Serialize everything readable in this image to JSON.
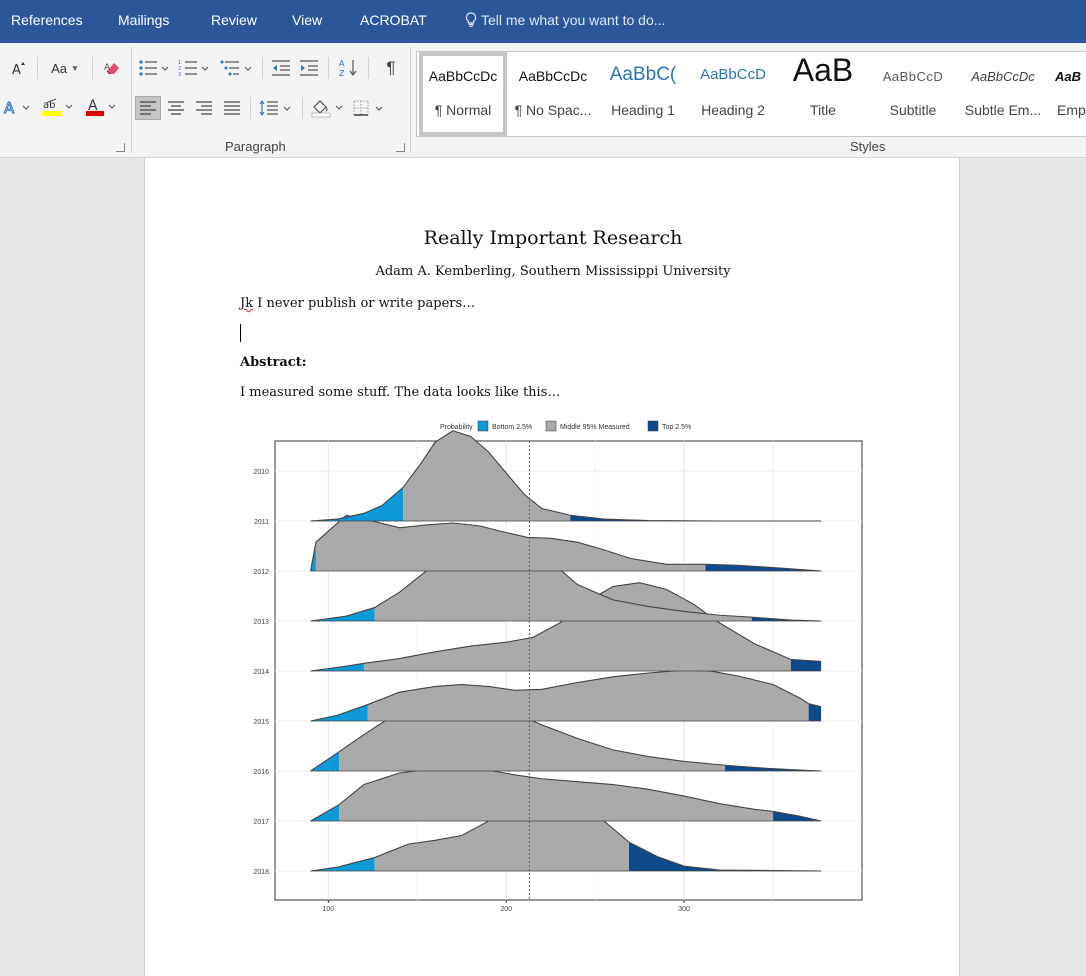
{
  "menu": {
    "tabs": [
      "References",
      "Mailings",
      "Review",
      "View",
      "ACROBAT"
    ],
    "tell_me": "Tell me what you want to do..."
  },
  "ribbon": {
    "font_group": {
      "size_label": "A",
      "case_label": "Aa"
    },
    "paragraph_label": "Paragraph",
    "styles_label": "Styles",
    "styles": [
      {
        "sample": "AaBbCcDc",
        "name": "¶ Normal"
      },
      {
        "sample": "AaBbCcDc",
        "name": "¶ No Spac..."
      },
      {
        "sample": "AaBbC(",
        "name": "Heading 1"
      },
      {
        "sample": "AaBbCcD",
        "name": "Heading 2"
      },
      {
        "sample": "AaB",
        "name": "Title"
      },
      {
        "sample": "AaBbCcD",
        "name": "Subtitle"
      },
      {
        "sample": "AaBbCcDc",
        "name": "Subtle Em..."
      },
      {
        "sample": "AaB",
        "name": "Emp"
      }
    ],
    "colors": {
      "highlight": "#ffff00",
      "font_color": "#e00000",
      "accent": "#2b579a"
    }
  },
  "document": {
    "title": "Really Important Research",
    "author": "Adam A. Kemberling, Southern Mississippi University",
    "line1_first": "Jk",
    "line1_rest": " I never publish or write papers…",
    "abstract_heading": "Abstract:",
    "abstract_text": "I measured some stuff. The data looks like this…"
  },
  "chart_data": {
    "type": "area",
    "subtype": "ridgeline",
    "legend": {
      "title": "Probability",
      "position": "top",
      "entries": [
        {
          "name": "Bottom 2.5%",
          "color": "#0d9ad8"
        },
        {
          "name": "Middle 95% Measured",
          "color": "#aaaaaa"
        },
        {
          "name": "Top 2.5%",
          "color": "#0c4a8c"
        }
      ]
    },
    "x_ticks": [
      100,
      200,
      300
    ],
    "xlim": [
      70,
      400
    ],
    "y_categories": [
      "2010",
      "2011",
      "2012",
      "2013",
      "2014",
      "2015",
      "2016",
      "2017",
      "2018"
    ],
    "reference_line_x": 213,
    "reference_line_color": "#c0392b",
    "grid": true,
    "series": [
      {
        "name": "2011",
        "x_range": [
          90,
          377
        ],
        "lower_2_5": 142,
        "upper_2_5": 236,
        "density": [
          [
            90,
            0.0
          ],
          [
            105,
            0.02
          ],
          [
            120,
            0.08
          ],
          [
            130,
            0.16
          ],
          [
            142,
            0.35
          ],
          [
            152,
            0.6
          ],
          [
            160,
            0.82
          ],
          [
            170,
            0.94
          ],
          [
            180,
            0.88
          ],
          [
            190,
            0.72
          ],
          [
            200,
            0.5
          ],
          [
            210,
            0.28
          ],
          [
            220,
            0.13
          ],
          [
            236,
            0.06
          ],
          [
            255,
            0.02
          ],
          [
            280,
            0.005
          ],
          [
            320,
            0.0
          ],
          [
            377,
            0.0
          ]
        ]
      },
      {
        "name": "2012",
        "x_range": [
          90,
          377
        ],
        "lower_2_5": 93,
        "upper_2_5": 312,
        "density": [
          [
            90,
            0.0
          ],
          [
            93,
            0.3
          ],
          [
            110,
            0.58
          ],
          [
            125,
            0.52
          ],
          [
            140,
            0.45
          ],
          [
            155,
            0.48
          ],
          [
            170,
            0.5
          ],
          [
            185,
            0.47
          ],
          [
            200,
            0.4
          ],
          [
            212,
            0.35
          ],
          [
            225,
            0.34
          ],
          [
            240,
            0.3
          ],
          [
            255,
            0.22
          ],
          [
            270,
            0.13
          ],
          [
            290,
            0.07
          ],
          [
            312,
            0.07
          ],
          [
            330,
            0.06
          ],
          [
            355,
            0.03
          ],
          [
            377,
            0.0
          ]
        ]
      },
      {
        "name": "2013",
        "x_range": [
          90,
          377
        ],
        "lower_2_5": 126,
        "upper_2_5": 338,
        "density": [
          [
            90,
            0.0
          ],
          [
            110,
            0.05
          ],
          [
            126,
            0.14
          ],
          [
            140,
            0.3
          ],
          [
            155,
            0.52
          ],
          [
            170,
            0.72
          ],
          [
            185,
            0.84
          ],
          [
            197,
            0.88
          ],
          [
            210,
            0.82
          ],
          [
            225,
            0.62
          ],
          [
            240,
            0.38
          ],
          [
            260,
            0.22
          ],
          [
            280,
            0.15
          ],
          [
            300,
            0.1
          ],
          [
            320,
            0.06
          ],
          [
            338,
            0.04
          ],
          [
            360,
            0.01
          ],
          [
            377,
            0.0
          ]
        ]
      },
      {
        "name": "2014",
        "x_range": [
          90,
          377
        ],
        "lower_2_5": 120,
        "upper_2_5": 360,
        "density": [
          [
            90,
            0.0
          ],
          [
            110,
            0.05
          ],
          [
            120,
            0.08
          ],
          [
            140,
            0.13
          ],
          [
            160,
            0.2
          ],
          [
            180,
            0.26
          ],
          [
            200,
            0.3
          ],
          [
            215,
            0.35
          ],
          [
            230,
            0.5
          ],
          [
            245,
            0.72
          ],
          [
            260,
            0.88
          ],
          [
            275,
            0.92
          ],
          [
            290,
            0.85
          ],
          [
            305,
            0.7
          ],
          [
            320,
            0.5
          ],
          [
            340,
            0.28
          ],
          [
            360,
            0.12
          ],
          [
            377,
            0.1
          ]
        ]
      },
      {
        "name": "2015",
        "x_range": [
          90,
          377
        ],
        "lower_2_5": 122,
        "upper_2_5": 370,
        "density": [
          [
            90,
            0.0
          ],
          [
            105,
            0.06
          ],
          [
            122,
            0.17
          ],
          [
            140,
            0.3
          ],
          [
            160,
            0.36
          ],
          [
            175,
            0.38
          ],
          [
            190,
            0.36
          ],
          [
            205,
            0.32
          ],
          [
            220,
            0.33
          ],
          [
            240,
            0.4
          ],
          [
            260,
            0.46
          ],
          [
            280,
            0.5
          ],
          [
            300,
            0.53
          ],
          [
            315,
            0.52
          ],
          [
            330,
            0.47
          ],
          [
            350,
            0.38
          ],
          [
            365,
            0.24
          ],
          [
            370,
            0.18
          ],
          [
            377,
            0.15
          ]
        ]
      },
      {
        "name": "2016",
        "x_range": [
          90,
          377
        ],
        "lower_2_5": 106,
        "upper_2_5": 323,
        "density": [
          [
            90,
            0.0
          ],
          [
            106,
            0.2
          ],
          [
            120,
            0.38
          ],
          [
            140,
            0.62
          ],
          [
            160,
            0.74
          ],
          [
            175,
            0.76
          ],
          [
            190,
            0.7
          ],
          [
            205,
            0.6
          ],
          [
            220,
            0.48
          ],
          [
            240,
            0.34
          ],
          [
            260,
            0.22
          ],
          [
            280,
            0.15
          ],
          [
            300,
            0.1
          ],
          [
            323,
            0.06
          ],
          [
            345,
            0.03
          ],
          [
            365,
            0.01
          ],
          [
            377,
            0.0
          ]
        ]
      },
      {
        "name": "2017",
        "x_range": [
          90,
          377
        ],
        "lower_2_5": 106,
        "upper_2_5": 350,
        "density": [
          [
            90,
            0.0
          ],
          [
            106,
            0.17
          ],
          [
            120,
            0.38
          ],
          [
            140,
            0.5
          ],
          [
            160,
            0.55
          ],
          [
            175,
            0.56
          ],
          [
            190,
            0.53
          ],
          [
            205,
            0.48
          ],
          [
            220,
            0.44
          ],
          [
            240,
            0.41
          ],
          [
            260,
            0.38
          ],
          [
            280,
            0.33
          ],
          [
            300,
            0.26
          ],
          [
            320,
            0.18
          ],
          [
            340,
            0.12
          ],
          [
            350,
            0.1
          ],
          [
            365,
            0.05
          ],
          [
            377,
            0.0
          ]
        ]
      },
      {
        "name": "2018",
        "x_range": [
          90,
          377
        ],
        "lower_2_5": 126,
        "upper_2_5": 269,
        "density": [
          [
            90,
            0.0
          ],
          [
            105,
            0.04
          ],
          [
            126,
            0.14
          ],
          [
            145,
            0.28
          ],
          [
            160,
            0.32
          ],
          [
            175,
            0.37
          ],
          [
            190,
            0.52
          ],
          [
            205,
            0.7
          ],
          [
            215,
            0.8
          ],
          [
            225,
            0.8
          ],
          [
            240,
            0.72
          ],
          [
            255,
            0.52
          ],
          [
            269,
            0.3
          ],
          [
            285,
            0.15
          ],
          [
            300,
            0.05
          ],
          [
            320,
            0.01
          ],
          [
            377,
            0.0
          ]
        ]
      }
    ]
  }
}
